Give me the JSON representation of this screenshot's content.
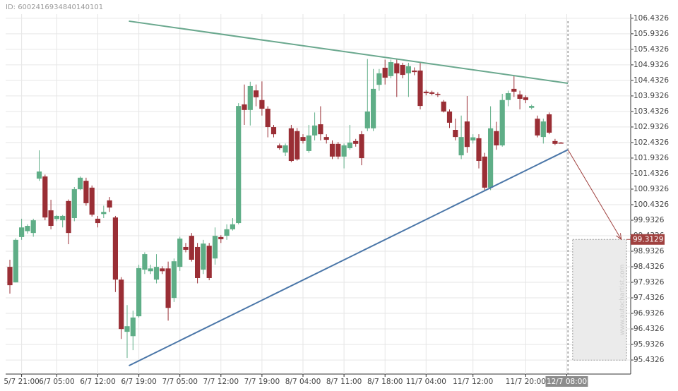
{
  "id_label": "ID: 6002416934840140101",
  "watermark": "www.autochartist.com",
  "chart_data": {
    "type": "candlestick",
    "categories": [
      null,
      null,
      "5/7 21:00",
      null,
      null,
      null,
      null,
      null,
      "6/7 05:00",
      null,
      null,
      null,
      null,
      null,
      null,
      "6/7 12:00",
      null,
      null,
      null,
      null,
      null,
      null,
      "6/7 19:00",
      null,
      null,
      null,
      null,
      null,
      null,
      "7/7 05:00",
      null,
      null,
      null,
      null,
      null,
      null,
      "7/7 12:00",
      null,
      null,
      null,
      null,
      null,
      null,
      "7/7 19:00",
      null,
      null,
      null,
      null,
      null,
      null,
      "8/7 04:00",
      null,
      null,
      null,
      null,
      null,
      null,
      "8/7 11:00",
      null,
      null,
      null,
      null,
      null,
      null,
      "8/7 18:00",
      null,
      null,
      null,
      null,
      null,
      null,
      "11/7 04:00",
      null,
      null,
      null,
      null,
      null,
      null,
      null,
      "11/7 12:00",
      null,
      null,
      null,
      null,
      null,
      null,
      null,
      null,
      "11/7 20:00",
      null,
      null,
      null,
      null,
      null,
      null,
      "12/7 08:00"
    ],
    "open": [
      98.43,
      97.93,
      99.39,
      99.58,
      99.52,
      101.27,
      101.34,
      100.25,
      99.97,
      99.93,
      100.55,
      100.0,
      100.93,
      101.2,
      100.98,
      99.98,
      100.13,
      100.57,
      100.02,
      98.02,
      96.34,
      96.2,
      96.84,
      98.34,
      98.29,
      98.02,
      98.38,
      98.38,
      97.43,
      98.43,
      99.07,
      99.43,
      99.07,
      98.34,
      99.11,
      98.7,
      99.39,
      99.43,
      99.64,
      99.84,
      103.66,
      103.48,
      104.11,
      103.8,
      103.52,
      102.93,
      102.34,
      102.11,
      102.89,
      102.8,
      102.61,
      102.16,
      102.66,
      103.02,
      102.61,
      102.39,
      102.39,
      101.98,
      102.25,
      102.48,
      102.7,
      102.89,
      102.89,
      104.29,
      104.84,
      104.57,
      104.98,
      104.93,
      104.66,
      104.75,
      104.75,
      104.07,
      104.05,
      104.0,
      103.75,
      103.43,
      102.84,
      102.02,
      103.11,
      102.5,
      102.57,
      101.98,
      100.98,
      102.8,
      102.34,
      103.8,
      104.16,
      103.98,
      103.89,
      103.55,
      103.2,
      102.61,
      103.34,
      102.48,
      102.43,
      null
    ],
    "high": [
      98.66,
      99.35,
      99.98,
      99.8,
      99.98,
      102.18,
      101.4,
      100.59,
      100.1,
      100.1,
      100.6,
      101.0,
      101.34,
      101.3,
      101.05,
      100.07,
      100.4,
      100.68,
      100.07,
      98.1,
      97.2,
      97.02,
      98.5,
      98.9,
      98.5,
      98.84,
      98.45,
      98.6,
      98.7,
      99.4,
      99.2,
      99.52,
      99.2,
      99.3,
      99.2,
      99.7,
      99.45,
      99.8,
      100.0,
      103.7,
      104.3,
      104.39,
      104.3,
      104.4,
      103.6,
      103.0,
      102.4,
      102.4,
      103.0,
      102.9,
      102.7,
      103.0,
      103.4,
      103.6,
      102.7,
      102.5,
      102.45,
      102.4,
      103.0,
      102.55,
      102.8,
      105.12,
      104.8,
      104.8,
      105.1,
      105.1,
      105.1,
      105.0,
      105.0,
      104.85,
      105.0,
      104.12,
      104.1,
      104.05,
      103.8,
      103.5,
      103.2,
      103.3,
      103.93,
      102.7,
      102.7,
      102.1,
      103.6,
      103.1,
      104.0,
      104.1,
      104.57,
      104.1,
      103.95,
      103.65,
      103.3,
      103.2,
      103.4,
      102.55,
      102.45,
      null
    ],
    "low": [
      97.57,
      97.93,
      99.3,
      99.5,
      99.4,
      101.2,
      99.93,
      99.64,
      99.9,
      99.7,
      99.16,
      99.9,
      100.9,
      100.4,
      100.05,
      99.7,
      100.0,
      100.2,
      97.62,
      96.11,
      95.5,
      95.75,
      96.8,
      98.2,
      98.2,
      97.9,
      98.2,
      96.7,
      97.3,
      98.3,
      98.9,
      98.6,
      97.9,
      98.2,
      98.0,
      98.5,
      99.2,
      99.3,
      99.6,
      99.8,
      103.0,
      102.98,
      103.6,
      103.3,
      102.6,
      102.6,
      102.2,
      102.0,
      101.8,
      101.85,
      102.4,
      102.1,
      102.5,
      102.5,
      102.4,
      101.9,
      101.9,
      101.6,
      102.2,
      102.3,
      101.7,
      102.8,
      102.8,
      104.1,
      104.3,
      104.5,
      103.9,
      104.5,
      103.9,
      104.6,
      103.5,
      103.95,
      103.95,
      103.9,
      103.4,
      102.9,
      102.5,
      101.9,
      102.1,
      102.4,
      101.6,
      100.9,
      100.9,
      102.2,
      102.3,
      103.6,
      103.9,
      103.5,
      103.7,
      103.5,
      102.6,
      102.4,
      102.7,
      102.35,
      102.4,
      null
    ],
    "close": [
      97.84,
      99.3,
      99.7,
      99.75,
      99.93,
      101.5,
      100.02,
      99.75,
      100.07,
      100.07,
      99.52,
      100.93,
      101.3,
      100.48,
      100.11,
      99.84,
      100.2,
      100.34,
      98.02,
      96.43,
      96.52,
      96.8,
      98.39,
      98.84,
      98.38,
      98.43,
      98.29,
      97.11,
      98.61,
      99.34,
      98.98,
      98.66,
      98.07,
      99.18,
      98.07,
      99.43,
      99.32,
      99.64,
      99.8,
      103.61,
      103.48,
      104.25,
      103.89,
      103.52,
      102.93,
      102.7,
      102.25,
      102.34,
      101.84,
      101.89,
      102.48,
      102.66,
      102.98,
      102.7,
      102.52,
      101.98,
      101.98,
      102.34,
      102.43,
      102.39,
      101.93,
      103.43,
      104.16,
      104.66,
      104.52,
      105.02,
      104.66,
      104.61,
      104.89,
      104.7,
      103.61,
      104.02,
      104.0,
      103.98,
      103.43,
      103.07,
      102.61,
      102.61,
      102.29,
      102.6,
      101.84,
      100.98,
      102.89,
      102.34,
      103.8,
      104.02,
      104.07,
      103.84,
      103.8,
      103.61,
      102.66,
      103.11,
      102.75,
      102.39,
      102.41,
      null
    ],
    "up_color": "#5fae87",
    "down_color": "#9a2e35",
    "ylim": [
      94.98,
      107.02
    ],
    "yticks": [
      95.4326,
      95.9326,
      96.4326,
      96.9326,
      97.4326,
      97.9326,
      98.4326,
      98.9326,
      99.4326,
      99.9326,
      100.4326,
      100.9326,
      101.4326,
      101.9326,
      102.4326,
      102.9326,
      103.4326,
      103.9326,
      104.4326,
      104.9326,
      105.4326,
      105.9326,
      106.4326
    ],
    "grid": true,
    "resistance": {
      "color": "#6aa88e",
      "points": [
        [
          20.3,
          106.34
        ],
        [
          95.2,
          104.34
        ]
      ]
    },
    "support": {
      "color": "#4a76a8",
      "points": [
        [
          20.3,
          95.25
        ],
        [
          95.2,
          102.2
        ]
      ]
    },
    "forecast": {
      "target": 99.3129,
      "start": [
        95.2,
        102.2
      ],
      "end_x": 104.3,
      "zone_x": [
        96,
        105.2
      ],
      "zone_low": 95.43,
      "color": "#a0413f"
    }
  }
}
